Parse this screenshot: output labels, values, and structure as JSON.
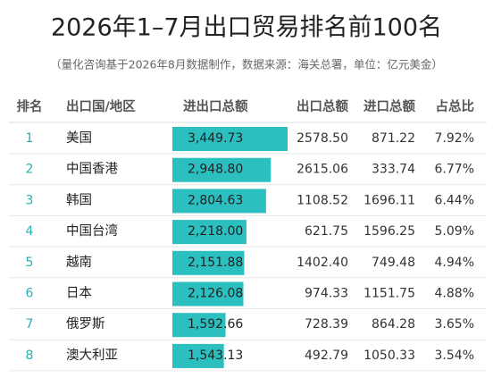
{
  "header": {
    "title": "2026年1–7月出口贸易排名前100名",
    "subtitle": "（量化咨询基于2026年8月数据制作，数据来源：海关总署，单位：亿元美金）"
  },
  "table": {
    "columns": [
      "排名",
      "出口国/地区",
      "进出口总额",
      "出口总额",
      "进口总额",
      "占总比"
    ],
    "rows": [
      [
        1,
        "美国",
        {
          "value": 3449.73,
          "label": "3,449.73"
        },
        "2578.50",
        "871.22",
        "7.92%"
      ],
      [
        2,
        "中国香港",
        {
          "value": 2948.8,
          "label": "2,948.80"
        },
        "2615.06",
        "333.74",
        "6.77%"
      ],
      [
        3,
        "韩国",
        {
          "value": 2804.63,
          "label": "2,804.63"
        },
        "1108.52",
        "1696.11",
        "6.44%"
      ],
      [
        4,
        "中国台湾",
        {
          "value": 2218.0,
          "label": "2,218.00"
        },
        "621.75",
        "1596.25",
        "5.09%"
      ],
      [
        5,
        "越南",
        {
          "value": 2151.88,
          "label": "2,151.88"
        },
        "1402.40",
        "749.48",
        "4.94%"
      ],
      [
        6,
        "日本",
        {
          "value": 2126.08,
          "label": "2,126.08"
        },
        "974.33",
        "1151.75",
        "4.88%"
      ],
      [
        7,
        "俄罗斯",
        {
          "value": 1592.66,
          "label": "1,592.66"
        },
        "728.39",
        "864.28",
        "3.65%"
      ],
      [
        8,
        "澳大利亚",
        {
          "value": 1543.13,
          "label": "1,543.13"
        },
        "492.79",
        "1050.33",
        "3.54%"
      ]
    ]
  }
}
